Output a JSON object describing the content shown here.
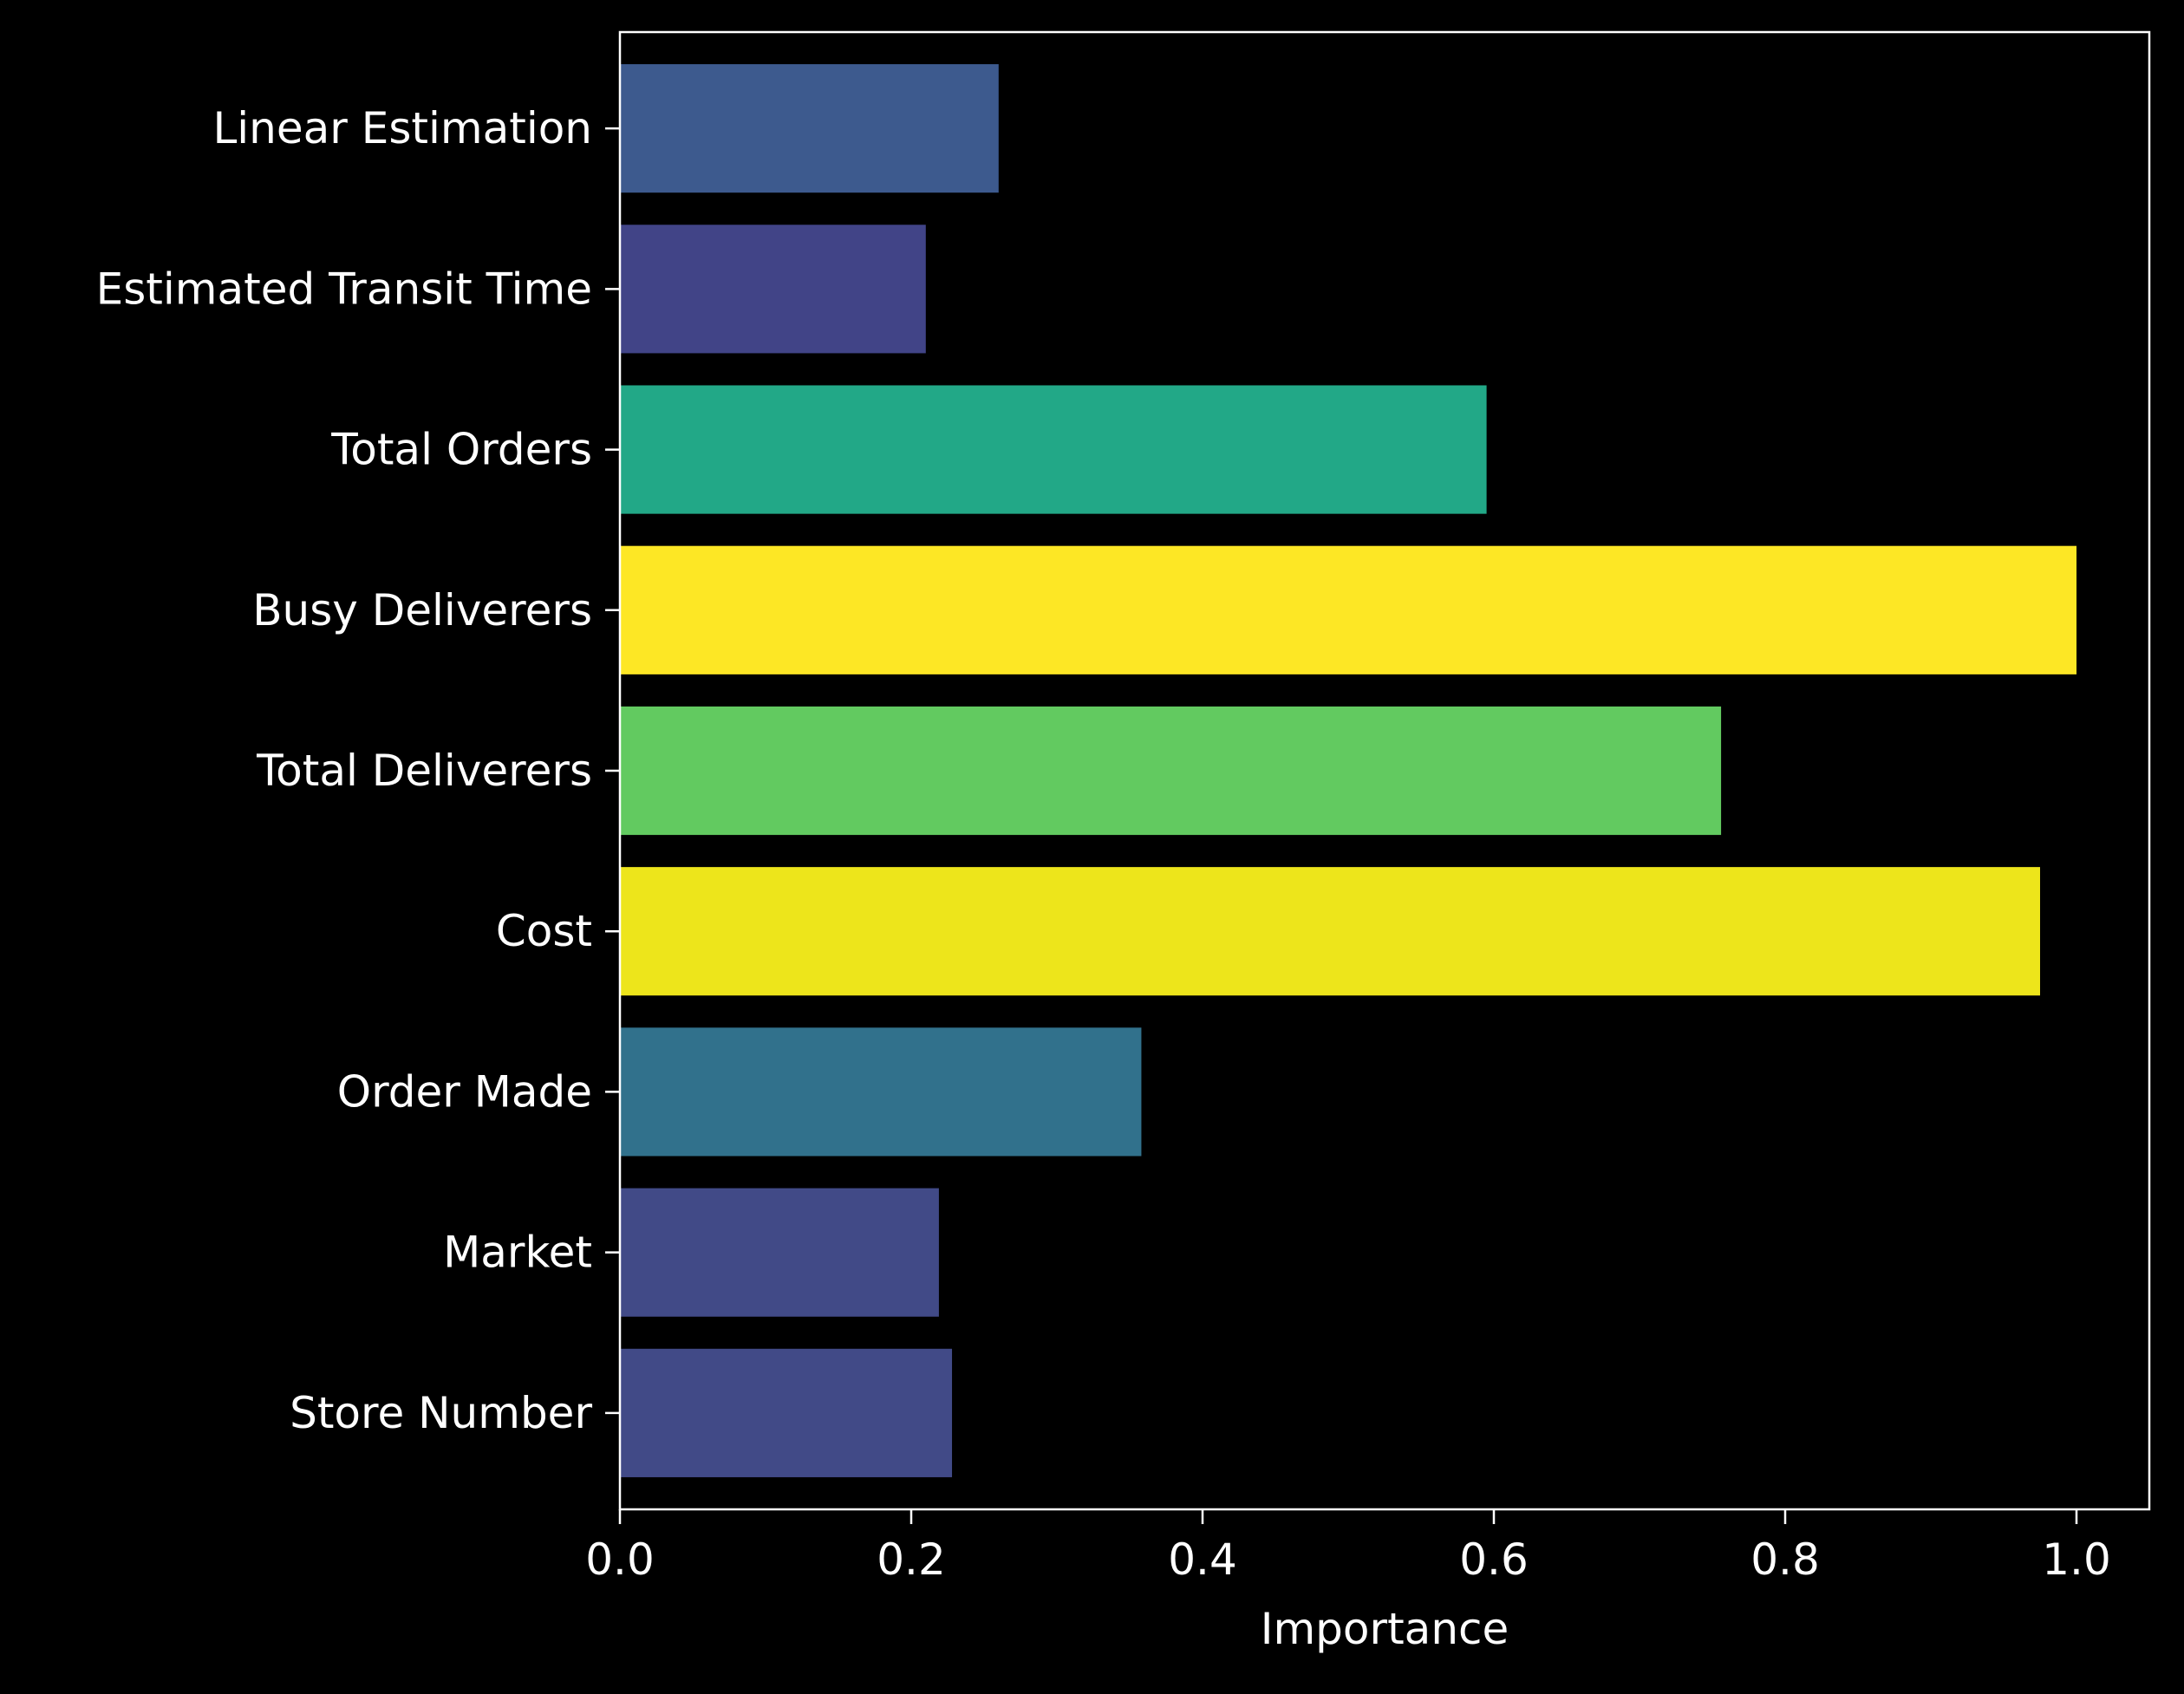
{
  "chart_data": {
    "type": "bar",
    "orientation": "horizontal",
    "title": "",
    "xlabel": "Importance",
    "ylabel": "",
    "xlim": [
      0.0,
      1.05
    ],
    "grid": false,
    "legend": "none",
    "categories": [
      "Store Number",
      "Market",
      "Order Made",
      "Cost",
      "Total Deliverers",
      "Busy Deliverers",
      "Total Orders",
      "Estimated Transit Time",
      "Linear Estimation"
    ],
    "values": [
      0.228,
      0.219,
      0.358,
      0.975,
      0.756,
      1.0,
      0.595,
      0.21,
      0.26
    ],
    "colors": [
      "#414a87",
      "#414a87",
      "#31718c",
      "#ede51b",
      "#62ca60",
      "#fde725",
      "#22a887",
      "#414487",
      "#3d5a8e"
    ],
    "x_ticks": [
      "0.0",
      "0.2",
      "0.4",
      "0.6",
      "0.8",
      "1.0"
    ],
    "x_tick_values": [
      0.0,
      0.2,
      0.4,
      0.6,
      0.8,
      1.0
    ],
    "background": "#000000",
    "foreground": "#ffffff"
  }
}
